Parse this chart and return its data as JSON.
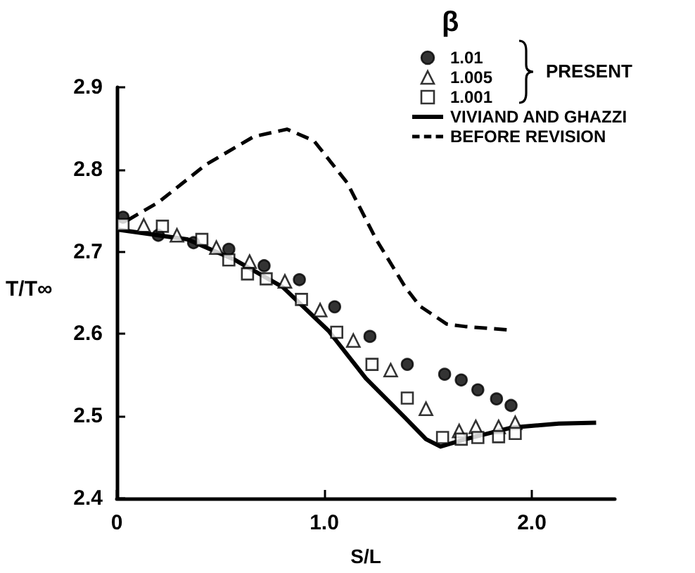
{
  "chart_data": {
    "type": "scatter",
    "xlabel": "S/L",
    "ylabel": "T/T∞",
    "legend_title": "β",
    "annotations": [
      "PRESENT"
    ],
    "xlim": [
      0,
      2.4
    ],
    "ylim": [
      2.4,
      2.9
    ],
    "xticks": [
      0,
      {
        "value": 1,
        "label": "1.0"
      },
      {
        "value": 2,
        "label": "2.0"
      }
    ],
    "yticks": [
      2.4,
      2.5,
      2.6,
      2.7,
      2.8,
      2.9
    ],
    "grid": false,
    "legend": "top right",
    "series": [
      {
        "name": "1.01",
        "type": "scatter",
        "marker": "circle",
        "color": "#000000",
        "x": [
          0.03,
          0.2,
          0.37,
          0.54,
          0.71,
          0.88,
          1.05,
          1.22,
          1.4,
          1.58,
          1.66,
          1.74,
          1.83,
          1.9
        ],
        "values": [
          2.742,
          2.72,
          2.711,
          2.703,
          2.683,
          2.666,
          2.633,
          2.597,
          2.563,
          2.551,
          2.544,
          2.532,
          2.521,
          2.513
        ]
      },
      {
        "name": "1.005",
        "type": "scatter",
        "marker": "triangle",
        "color": "#000000",
        "x": [
          0.13,
          0.29,
          0.48,
          0.64,
          0.81,
          0.98,
          1.14,
          1.32,
          1.49,
          1.65,
          1.73,
          1.84,
          1.92
        ],
        "values": [
          2.732,
          2.72,
          2.705,
          2.688,
          2.664,
          2.629,
          2.592,
          2.556,
          2.509,
          2.482,
          2.487,
          2.487,
          2.492
        ]
      },
      {
        "name": "1.001",
        "type": "scatter",
        "marker": "square",
        "color": "#000000",
        "x": [
          0.03,
          0.22,
          0.41,
          0.54,
          0.63,
          0.72,
          0.89,
          1.06,
          1.23,
          1.4,
          1.57,
          1.66,
          1.74,
          1.84,
          1.92
        ],
        "values": [
          2.733,
          2.731,
          2.715,
          2.69,
          2.673,
          2.667,
          2.642,
          2.602,
          2.563,
          2.522,
          2.474,
          2.472,
          2.474,
          2.475,
          2.479
        ]
      },
      {
        "name": "VIVIAND AND GHAZZI",
        "type": "line",
        "line_style": "solid",
        "color": "#000000",
        "x": [
          0,
          0.2,
          0.34,
          0.57,
          0.8,
          1.02,
          1.2,
          1.39,
          1.49,
          1.56,
          1.68,
          1.9,
          2.13,
          2.31
        ],
        "values": [
          2.727,
          2.72,
          2.715,
          2.69,
          2.657,
          2.604,
          2.546,
          2.498,
          2.472,
          2.463,
          2.472,
          2.486,
          2.491,
          2.492
        ]
      },
      {
        "name": "BEFORE REVISION",
        "type": "line",
        "line_style": "dashed",
        "color": "#000000",
        "x": [
          0.05,
          0.2,
          0.43,
          0.66,
          0.82,
          0.95,
          1.11,
          1.25,
          1.39,
          1.46,
          1.59,
          1.68,
          1.88
        ],
        "values": [
          2.738,
          2.76,
          2.806,
          2.84,
          2.849,
          2.835,
          2.784,
          2.715,
          2.657,
          2.634,
          2.612,
          2.609,
          2.605
        ]
      }
    ]
  }
}
